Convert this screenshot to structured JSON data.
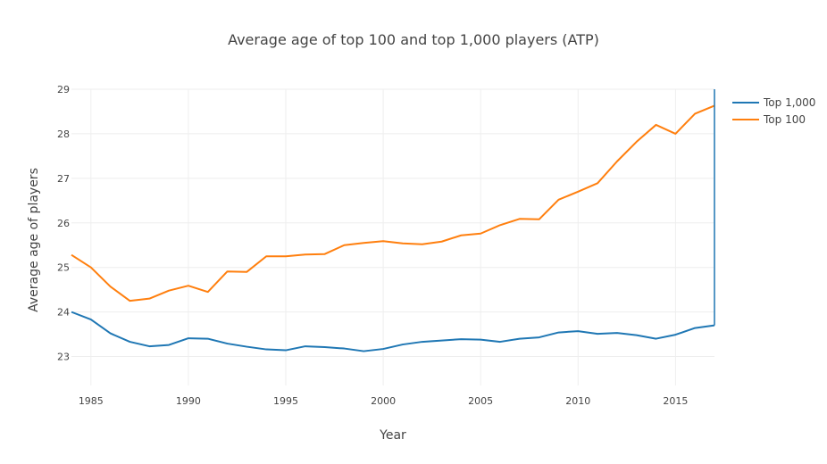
{
  "chart_data": {
    "type": "line",
    "title": "Average age of top 100 and top 1,000 players (ATP)",
    "xlabel": "Year",
    "ylabel": "Average age of players",
    "xlim": [
      1984,
      2017
    ],
    "ylim": [
      22.35,
      29
    ],
    "x_ticks": [
      1985,
      1990,
      1995,
      2000,
      2005,
      2010,
      2015
    ],
    "y_ticks": [
      23,
      24,
      25,
      26,
      27,
      28,
      29
    ],
    "grid": true,
    "legend_position": "top-right",
    "x": [
      1984,
      1985,
      1986,
      1987,
      1988,
      1989,
      1990,
      1991,
      1992,
      1993,
      1994,
      1995,
      1996,
      1997,
      1998,
      1999,
      2000,
      2001,
      2002,
      2003,
      2004,
      2005,
      2006,
      2007,
      2008,
      2009,
      2010,
      2011,
      2012,
      2013,
      2014,
      2015,
      2016,
      2017
    ],
    "series": [
      {
        "name": "Top 1,000",
        "color": "#1f77b4",
        "values": [
          24.0,
          23.83,
          23.52,
          23.33,
          23.23,
          23.26,
          23.41,
          23.4,
          23.29,
          23.22,
          23.16,
          23.14,
          23.23,
          23.21,
          23.18,
          23.12,
          23.17,
          23.27,
          23.33,
          23.36,
          23.39,
          23.38,
          23.33,
          23.4,
          23.43,
          23.54,
          23.57,
          23.51,
          23.53,
          23.48,
          23.4,
          23.49,
          23.64,
          23.7
        ]
      },
      {
        "name": "Top 100",
        "color": "#ff7f0e",
        "values": [
          25.28,
          25.0,
          24.57,
          24.25,
          24.3,
          24.48,
          24.59,
          24.45,
          24.91,
          24.9,
          25.25,
          25.25,
          25.29,
          25.3,
          25.5,
          25.55,
          25.59,
          25.54,
          25.52,
          25.58,
          25.72,
          25.76,
          25.95,
          26.09,
          26.08,
          26.52,
          26.7,
          26.89,
          27.38,
          27.82,
          28.2,
          28.0,
          28.45,
          28.63
        ]
      }
    ]
  }
}
